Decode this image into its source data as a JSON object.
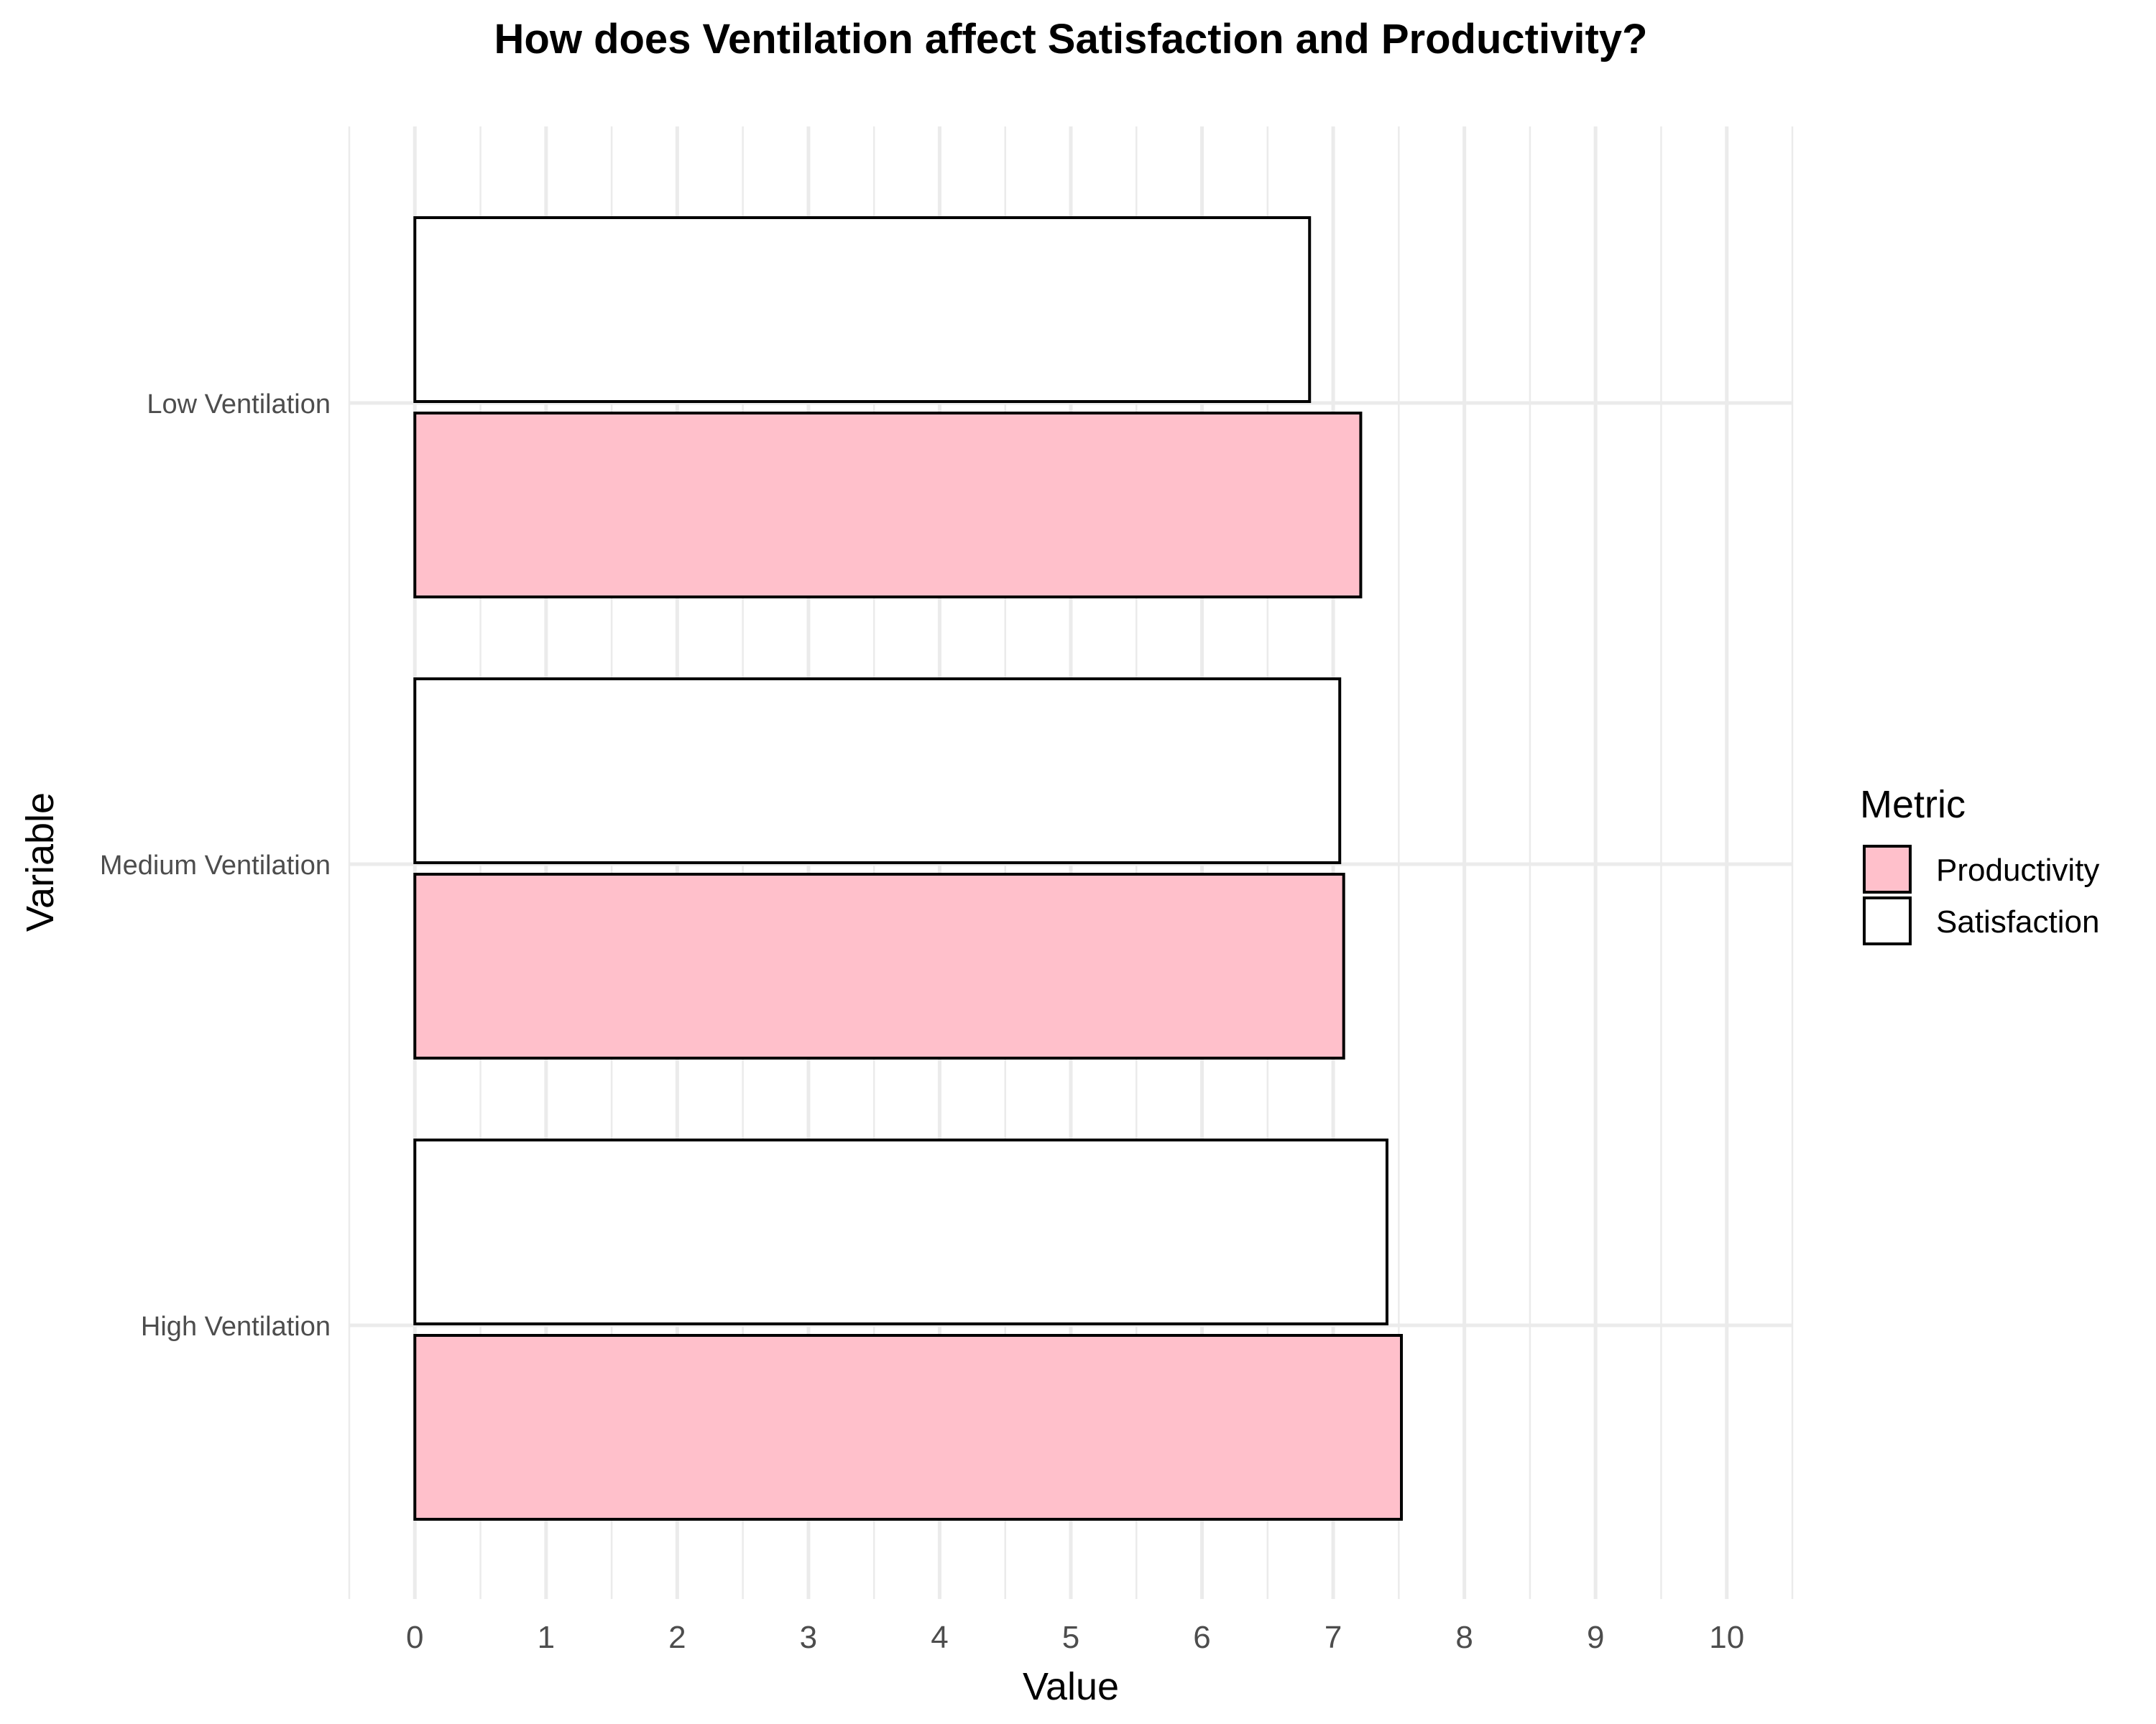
{
  "chart_data": {
    "type": "bar",
    "orientation": "horizontal",
    "title": "How does Ventilation affect Satisfaction and Productivity?",
    "xlabel": "Value",
    "ylabel": "Variable",
    "categories": [
      "Low Ventilation",
      "Medium Ventilation",
      "High Ventilation"
    ],
    "series": [
      {
        "name": "Satisfaction",
        "values": [
          6.82,
          7.05,
          7.41
        ],
        "color": "#ffffff"
      },
      {
        "name": "Productivity",
        "values": [
          7.21,
          7.08,
          7.52
        ],
        "color": "#ffc0cb"
      }
    ],
    "xlim": [
      -0.5,
      10.5
    ],
    "xticks": [
      "0",
      "1",
      "2",
      "3",
      "4",
      "5",
      "6",
      "7",
      "8",
      "9",
      "10"
    ],
    "grid": true,
    "legend": {
      "title": "Metric",
      "position": "right",
      "entries": [
        {
          "label": "Productivity",
          "color": "#ffc0cb"
        },
        {
          "label": "Satisfaction",
          "color": "#ffffff"
        }
      ]
    }
  }
}
